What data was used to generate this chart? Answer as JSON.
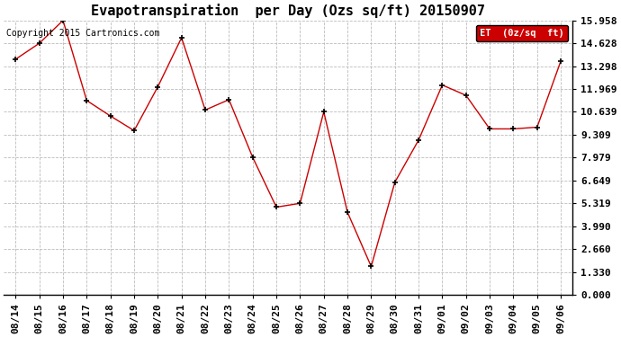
{
  "title": "Evapotranspiration  per Day (Ozs sq/ft) 20150907",
  "copyright": "Copyright 2015 Cartronics.com",
  "legend_label": "ET  (0z/sq  ft)",
  "x_labels": [
    "08/14",
    "08/15",
    "08/16",
    "08/17",
    "08/18",
    "08/19",
    "08/20",
    "08/21",
    "08/22",
    "08/23",
    "08/24",
    "08/25",
    "08/26",
    "08/27",
    "08/28",
    "08/29",
    "08/30",
    "08/31",
    "09/01",
    "09/02",
    "09/03",
    "09/04",
    "09/05",
    "09/06"
  ],
  "y_values": [
    13.7,
    14.628,
    15.958,
    11.3,
    10.4,
    9.55,
    12.1,
    14.95,
    10.75,
    11.35,
    8.0,
    5.1,
    5.319,
    10.639,
    4.8,
    1.65,
    6.55,
    9.0,
    12.2,
    11.6,
    9.65,
    9.65,
    9.75,
    13.6
  ],
  "y_ticks": [
    0.0,
    1.33,
    2.66,
    3.99,
    5.319,
    6.649,
    7.979,
    9.309,
    10.639,
    11.969,
    13.298,
    14.628,
    15.958
  ],
  "line_color": "#cc0000",
  "marker": "+",
  "marker_size": 5,
  "marker_color": "#000000",
  "background_color": "#ffffff",
  "grid_color": "#bbbbbb",
  "legend_bg": "#cc0000",
  "legend_text_color": "#ffffff",
  "title_fontsize": 11,
  "tick_fontsize": 8,
  "copyright_fontsize": 7,
  "ylim": [
    0.0,
    15.958
  ],
  "figwidth": 6.9,
  "figheight": 3.75,
  "dpi": 100
}
